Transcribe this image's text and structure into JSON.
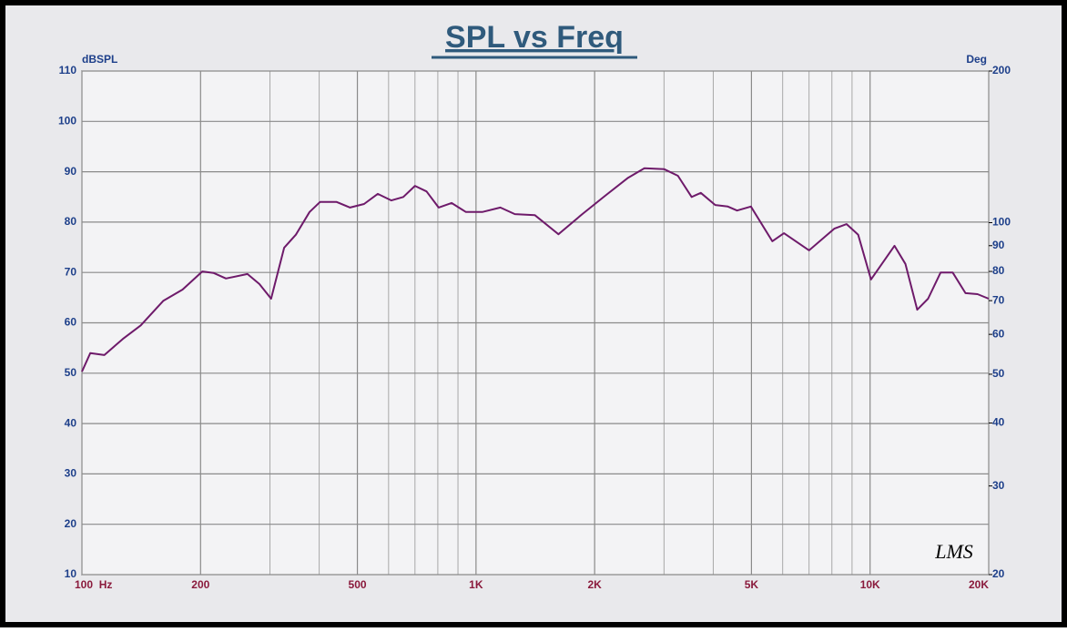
{
  "chart_data": {
    "type": "line",
    "title": "SPL vs Freq",
    "y_label": "dBSPL",
    "y2_label": "Deg",
    "annotation": "LMS",
    "xscale": "log",
    "y2scale": "log",
    "grid": true,
    "xlim": [
      100,
      20000
    ],
    "xticks": [
      {
        "value": 100,
        "label": "100  Hz"
      },
      200,
      500,
      {
        "value": 1000,
        "label": "1K"
      },
      {
        "value": 2000,
        "label": "2K"
      },
      {
        "value": 5000,
        "label": "5K"
      },
      {
        "value": 10000,
        "label": "10K"
      },
      {
        "value": 20000,
        "label": "20K"
      }
    ],
    "x_minor_ticks": [
      300,
      400,
      600,
      700,
      800,
      900,
      3000,
      4000,
      6000,
      7000,
      8000,
      9000
    ],
    "ylim": [
      10,
      110
    ],
    "yticks": [
      10,
      20,
      30,
      40,
      50,
      60,
      70,
      80,
      90,
      100,
      110
    ],
    "y2lim": [
      20,
      200
    ],
    "y2ticks": [
      20,
      30,
      40,
      50,
      60,
      70,
      80,
      90,
      100,
      200
    ],
    "x": [
      100,
      105,
      114,
      127,
      141,
      161,
      180,
      202,
      216,
      232,
      263,
      282,
      302,
      326,
      349,
      378,
      402,
      443,
      479,
      520,
      563,
      610,
      654,
      700,
      749,
      804,
      867,
      943,
      1037,
      1153,
      1255,
      1410,
      1619,
      1861,
      2125,
      2432,
      2675,
      3003,
      3253,
      3526,
      3720,
      4046,
      4357,
      4597,
      4985,
      5649,
      6046,
      7000,
      8114,
      8716,
      9329,
      10052,
      11530,
      12290,
      13174,
      14030,
      15100,
      16200,
      17460,
      18730,
      20000
    ],
    "series": [
      {
        "color": "#6e1a6a",
        "values": [
          50.3,
          54,
          53.6,
          56.8,
          59.5,
          64.4,
          66.6,
          70.2,
          69.9,
          68.8,
          69.7,
          67.7,
          64.8,
          74.9,
          77.5,
          82,
          84,
          84,
          82.9,
          83.6,
          85.6,
          84.3,
          85,
          87.2,
          86.1,
          82.9,
          83.8,
          82,
          82,
          82.9,
          81.6,
          81.4,
          77.6,
          81.6,
          85.2,
          88.8,
          90.7,
          90.5,
          89.2,
          85,
          85.8,
          83.4,
          83.1,
          82.3,
          83.1,
          76.2,
          77.8,
          74.4,
          78.7,
          79.6,
          77.5,
          68.6,
          75.3,
          71.7,
          62.6,
          64.8,
          70,
          70,
          65.9,
          65.7,
          64.8
        ]
      }
    ]
  }
}
